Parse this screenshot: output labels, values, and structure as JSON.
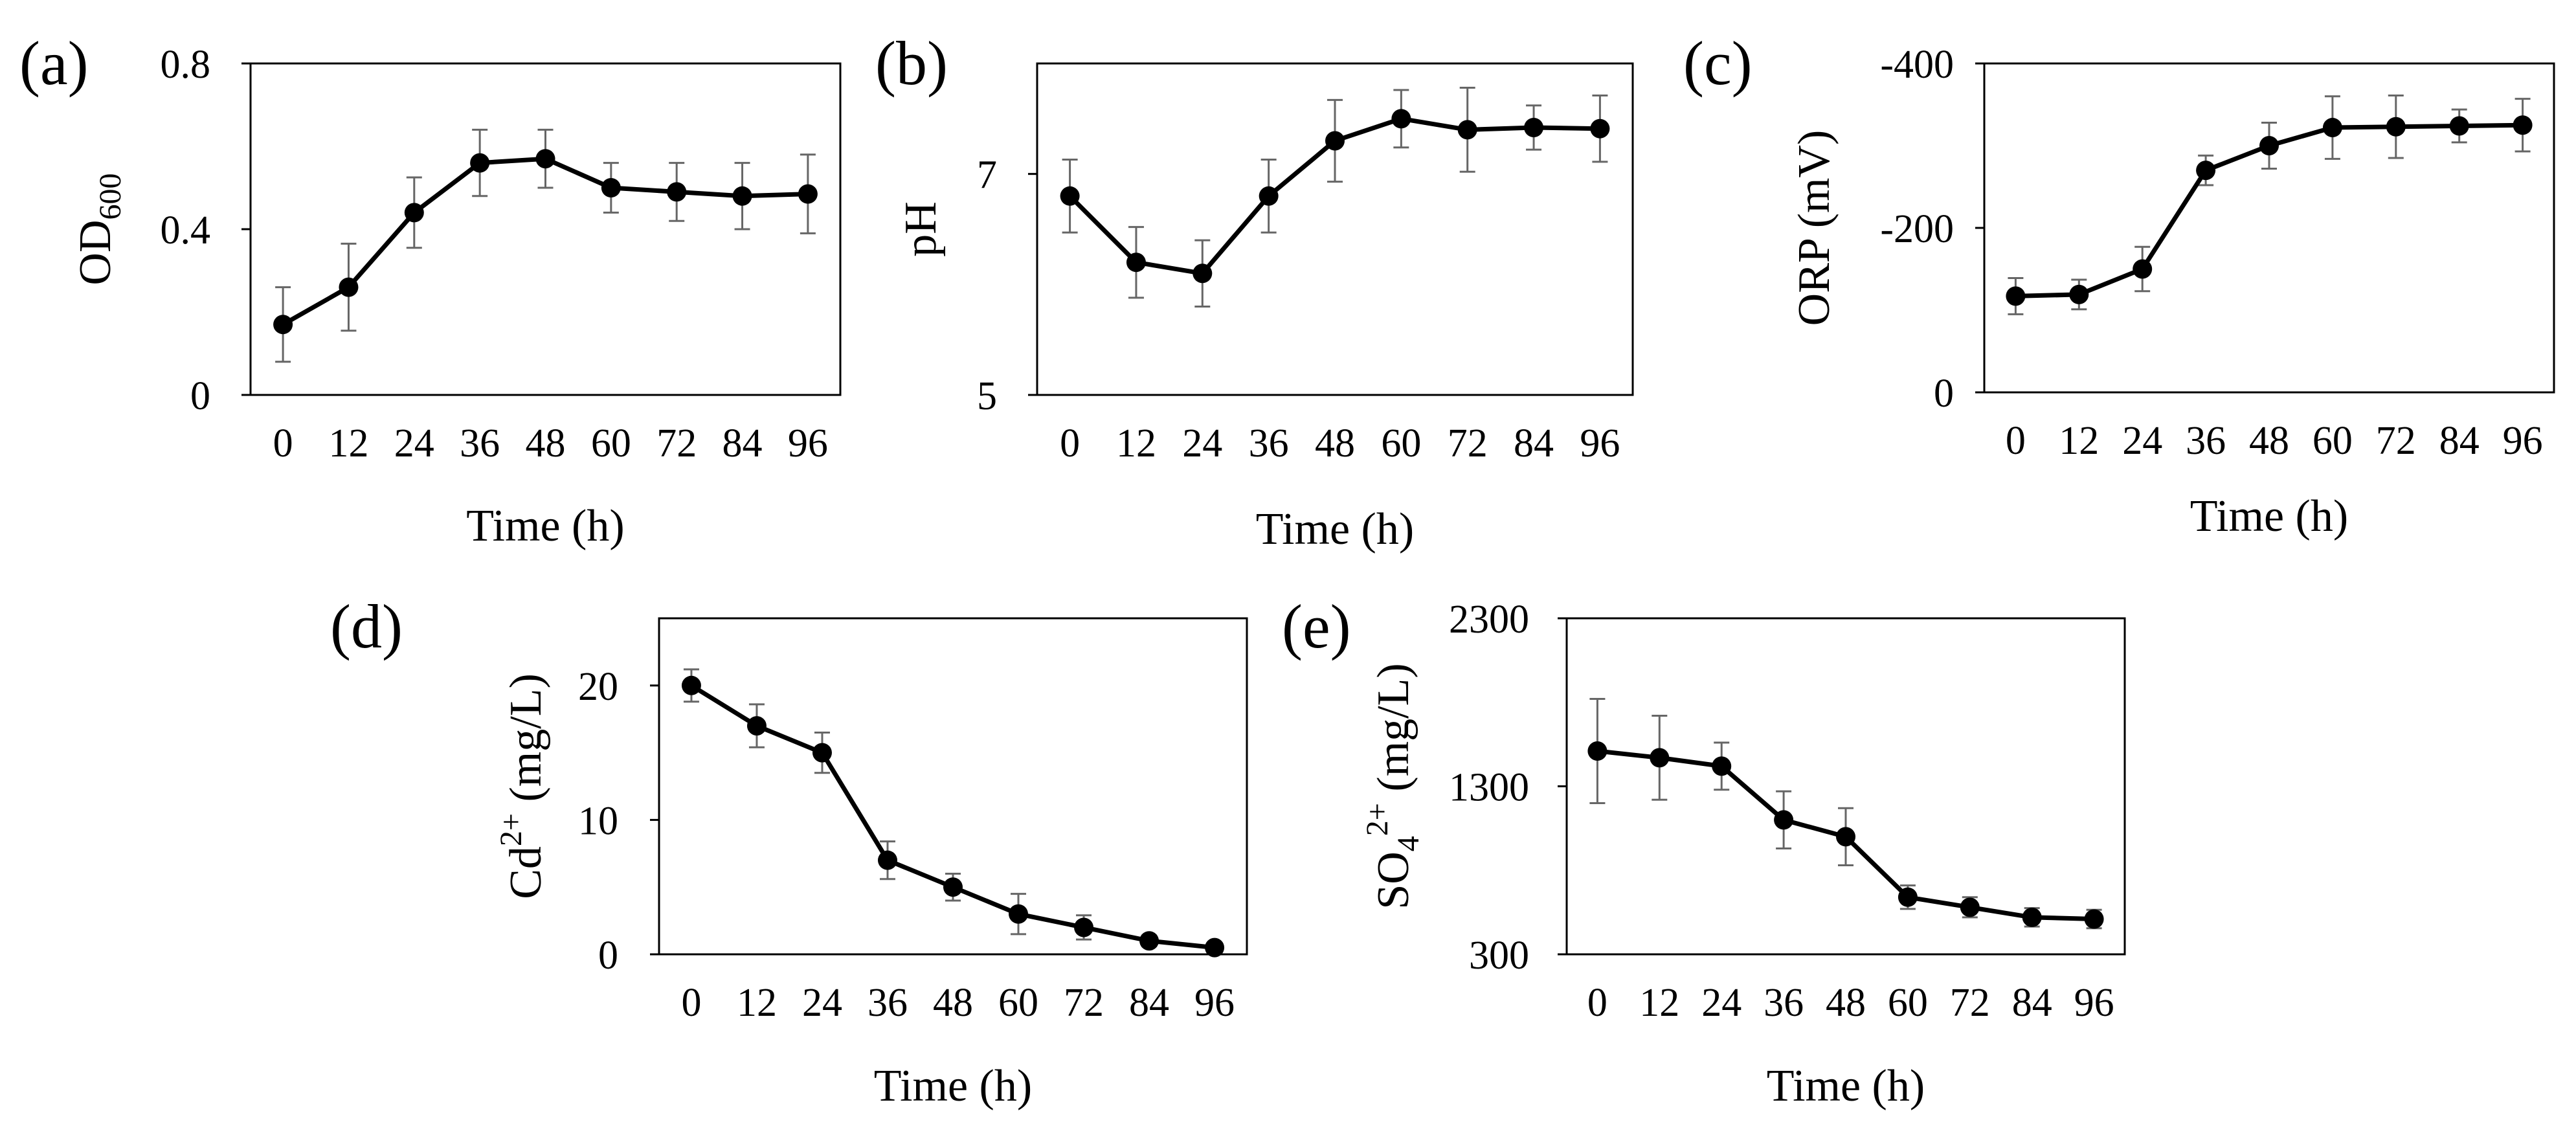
{
  "chart_data": [
    {
      "panel": "(a)",
      "type": "line",
      "x": [
        0,
        12,
        24,
        36,
        48,
        60,
        72,
        84,
        96
      ],
      "values": [
        0.17,
        0.26,
        0.44,
        0.56,
        0.57,
        0.5,
        0.49,
        0.48,
        0.485
      ],
      "errors": [
        0.09,
        0.105,
        0.085,
        0.08,
        0.07,
        0.06,
        0.07,
        0.08,
        0.095
      ],
      "xlabel": "Time (h)",
      "ylabel_main": "OD",
      "ylabel_sub": "600",
      "ylabel_sup": "",
      "ylabel_rest": "",
      "ylim": [
        0,
        0.8
      ],
      "yticks": [
        0,
        0.4,
        0.8
      ],
      "ytick_labels": [
        "0",
        "0.4",
        "0.8"
      ],
      "xtick_labels": [
        "0",
        "12",
        "24",
        "36",
        "48",
        "60",
        "72",
        "84",
        "96"
      ]
    },
    {
      "panel": "(b)",
      "type": "line",
      "x": [
        0,
        12,
        24,
        36,
        48,
        60,
        72,
        84,
        96
      ],
      "values": [
        6.8,
        6.2,
        6.1,
        6.8,
        7.3,
        7.5,
        7.4,
        7.42,
        7.41
      ],
      "errors": [
        0.33,
        0.32,
        0.3,
        0.33,
        0.37,
        0.26,
        0.38,
        0.2,
        0.3
      ],
      "xlabel": "Time (h)",
      "ylabel_main": "pH",
      "ylabel_sub": "",
      "ylabel_sup": "",
      "ylabel_rest": "",
      "ylim": [
        5,
        8
      ],
      "yticks": [
        5,
        7
      ],
      "ytick_labels": [
        "5",
        "7"
      ],
      "xtick_labels": [
        "0",
        "12",
        "24",
        "36",
        "48",
        "60",
        "72",
        "84",
        "96"
      ]
    },
    {
      "panel": "(c)",
      "type": "line",
      "x": [
        0,
        12,
        24,
        36,
        48,
        60,
        72,
        84,
        96
      ],
      "values": [
        -117,
        -119,
        -150,
        -270,
        -300,
        -322,
        -323,
        -324,
        -325
      ],
      "errors": [
        22,
        18,
        27,
        18,
        28,
        38,
        38,
        20,
        32
      ],
      "xlabel": "Time (h)",
      "ylabel_main": "ORP (mV)",
      "ylabel_sub": "",
      "ylabel_sup": "",
      "ylabel_rest": "",
      "ylim": [
        0,
        -400
      ],
      "yticks": [
        0,
        -200,
        -400
      ],
      "ytick_labels": [
        "0",
        "-200",
        "-400"
      ],
      "xtick_labels": [
        "0",
        "12",
        "24",
        "36",
        "48",
        "60",
        "72",
        "84",
        "96"
      ]
    },
    {
      "panel": "(d)",
      "type": "line",
      "x": [
        0,
        12,
        24,
        36,
        48,
        60,
        72,
        84,
        96
      ],
      "values": [
        20,
        17,
        15,
        7,
        5,
        3,
        2,
        1,
        0.5
      ],
      "errors": [
        1.2,
        1.6,
        1.5,
        1.4,
        1.0,
        1.5,
        0.9,
        0.4,
        0.3
      ],
      "xlabel": "Time (h)",
      "ylabel_main": "Cd",
      "ylabel_sub": "",
      "ylabel_sup": "2+",
      "ylabel_rest": " (mg/L)",
      "ylim": [
        0,
        25
      ],
      "yticks": [
        0,
        10,
        20
      ],
      "ytick_labels": [
        "0",
        "10",
        "20"
      ],
      "xtick_labels": [
        "0",
        "12",
        "24",
        "36",
        "48",
        "60",
        "72",
        "84",
        "96"
      ]
    },
    {
      "panel": "(e)",
      "type": "line",
      "x": [
        0,
        12,
        24,
        36,
        48,
        60,
        72,
        84,
        96
      ],
      "values": [
        1510,
        1470,
        1420,
        1100,
        1000,
        640,
        580,
        520,
        510
      ],
      "errors": [
        310,
        250,
        140,
        170,
        170,
        70,
        60,
        55,
        55
      ],
      "xlabel": "Time (h)",
      "ylabel_main": "SO",
      "ylabel_sub": "4",
      "ylabel_sup": "2+",
      "ylabel_rest": " (mg/L)",
      "ylim": [
        300,
        2300
      ],
      "yticks": [
        300,
        1300,
        2300
      ],
      "ytick_labels": [
        "300",
        "1300",
        "2300"
      ],
      "xtick_labels": [
        "0",
        "12",
        "24",
        "36",
        "48",
        "60",
        "72",
        "84",
        "96"
      ]
    }
  ]
}
